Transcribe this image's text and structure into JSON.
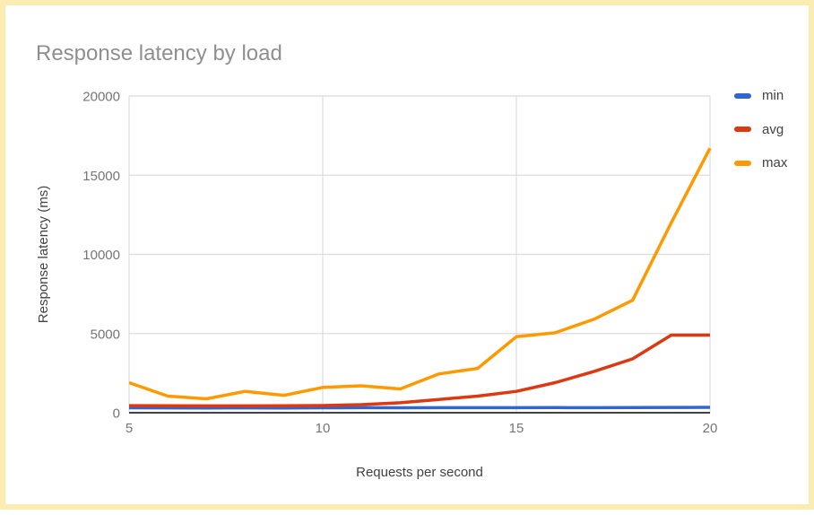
{
  "card": {
    "border_color": "#fbedb1",
    "background_color": "#ffffff"
  },
  "title": {
    "text": "Response latency by load",
    "color": "#8f8f8f"
  },
  "axes": {
    "x_title": "Requests per second",
    "y_title": "Response latency (ms)",
    "tick_color": "#757575",
    "axis_title_color": "#424242",
    "gridline_color": "#dcdcdc",
    "baseline_color": "#424242"
  },
  "legend": {
    "position": "right",
    "label_color": "#424242"
  },
  "chart_data": {
    "type": "line",
    "title": "Response latency by load",
    "xlabel": "Requests per second",
    "ylabel": "Response latency (ms)",
    "x": [
      5,
      6,
      7,
      8,
      9,
      10,
      11,
      12,
      13,
      14,
      15,
      16,
      17,
      18,
      19,
      20
    ],
    "series": [
      {
        "name": "min",
        "color": "#3366cc",
        "values": [
          310,
          305,
          300,
          305,
          300,
          310,
          315,
          310,
          320,
          315,
          320,
          325,
          320,
          330,
          335,
          340
        ]
      },
      {
        "name": "avg",
        "color": "#dc3912",
        "values": [
          450,
          440,
          430,
          430,
          440,
          455,
          510,
          630,
          840,
          1050,
          1350,
          1900,
          2600,
          3400,
          4900,
          4900
        ]
      },
      {
        "name": "max",
        "color": "#ff9900",
        "values": [
          1900,
          1050,
          880,
          1350,
          1100,
          1600,
          1700,
          1500,
          2450,
          2800,
          4800,
          5050,
          5900,
          7100,
          12000,
          16700
        ]
      }
    ],
    "xlim": [
      5,
      20
    ],
    "ylim": [
      0,
      20000
    ],
    "x_ticks": [
      5,
      10,
      15,
      20
    ],
    "y_ticks": [
      0,
      5000,
      10000,
      15000,
      20000
    ],
    "grid": true,
    "legend_position": "right"
  }
}
